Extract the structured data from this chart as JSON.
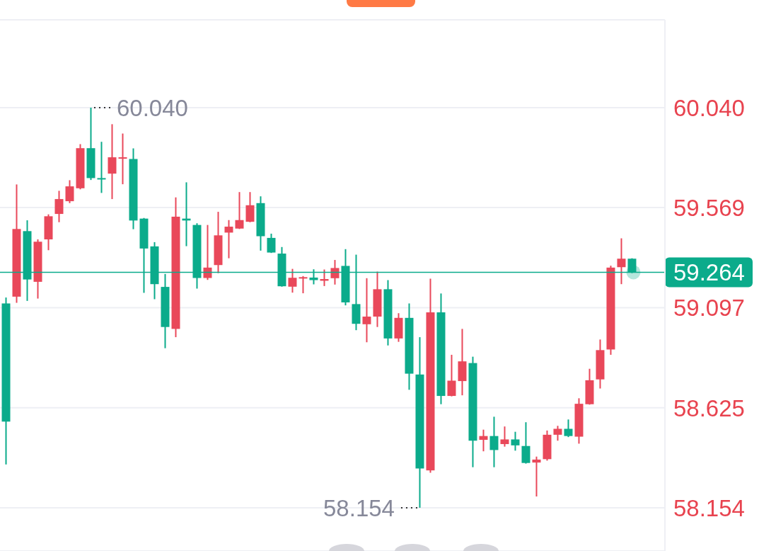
{
  "chart_data": {
    "type": "candlestick",
    "categories": [
      null,
      null,
      null,
      null,
      null,
      null,
      null,
      null,
      null,
      null,
      null,
      null,
      null,
      null,
      null,
      null,
      null,
      null,
      null,
      null,
      null,
      null,
      null,
      null,
      null,
      null,
      null,
      null,
      null,
      null,
      null,
      null,
      null,
      null,
      null,
      null,
      null,
      null,
      null,
      null,
      null,
      null,
      null,
      null,
      null,
      null,
      null,
      null,
      null,
      null,
      null,
      null,
      null,
      null,
      null,
      null,
      null,
      null,
      null,
      null
    ],
    "ohlc": [
      [
        59.117,
        59.145,
        58.358,
        58.56
      ],
      [
        59.149,
        59.678,
        59.12,
        59.468
      ],
      [
        59.458,
        59.509,
        59.129,
        59.23
      ],
      [
        59.219,
        59.419,
        59.14,
        59.408
      ],
      [
        59.419,
        59.537,
        59.368,
        59.528
      ],
      [
        59.539,
        59.648,
        59.5,
        59.609
      ],
      [
        59.599,
        59.698,
        59.59,
        59.669
      ],
      [
        59.66,
        59.868,
        59.655,
        59.849
      ],
      [
        59.849,
        60.04,
        59.699,
        59.708
      ],
      [
        59.708,
        59.879,
        59.638,
        59.702
      ],
      [
        59.729,
        59.962,
        59.609,
        59.806
      ],
      [
        59.8,
        59.918,
        59.679,
        59.806
      ],
      [
        59.798,
        59.848,
        59.467,
        59.508
      ],
      [
        59.517,
        59.52,
        59.167,
        59.376
      ],
      [
        59.386,
        59.406,
        59.137,
        59.208
      ],
      [
        59.195,
        59.256,
        58.906,
        59.006
      ],
      [
        58.997,
        59.617,
        58.958,
        59.526
      ],
      [
        59.517,
        59.688,
        59.387,
        59.508
      ],
      [
        59.487,
        59.495,
        59.187,
        59.237
      ],
      [
        59.237,
        59.487,
        59.228,
        59.286
      ],
      [
        59.298,
        59.549,
        59.26,
        59.438
      ],
      [
        59.451,
        59.51,
        59.33,
        59.479
      ],
      [
        59.47,
        59.642,
        59.468,
        59.51
      ],
      [
        59.502,
        59.642,
        59.5,
        59.58
      ],
      [
        59.59,
        59.622,
        59.366,
        59.434
      ],
      [
        59.426,
        59.446,
        59.355,
        59.357
      ],
      [
        59.352,
        59.383,
        59.196,
        59.198
      ],
      [
        59.196,
        59.28,
        59.168,
        59.238
      ],
      [
        59.235,
        59.246,
        59.165,
        59.241
      ],
      [
        59.239,
        59.278,
        59.207,
        59.227
      ],
      [
        59.224,
        59.277,
        59.199,
        59.232
      ],
      [
        59.236,
        59.322,
        59.206,
        59.284
      ],
      [
        59.294,
        59.373,
        59.108,
        59.122
      ],
      [
        59.114,
        59.347,
        58.991,
        59.021
      ],
      [
        59.019,
        59.236,
        58.934,
        59.055
      ],
      [
        59.055,
        59.267,
        59.006,
        59.184
      ],
      [
        59.184,
        59.227,
        58.919,
        58.952
      ],
      [
        58.952,
        59.071,
        58.936,
        59.049
      ],
      [
        59.049,
        59.117,
        58.71,
        58.786
      ],
      [
        58.782,
        58.958,
        58.154,
        58.339
      ],
      [
        58.33,
        59.234,
        58.319,
        59.075
      ],
      [
        59.075,
        59.164,
        58.642,
        58.681
      ],
      [
        58.681,
        58.875,
        58.679,
        58.753
      ],
      [
        58.751,
        58.997,
        58.684,
        58.844
      ],
      [
        58.836,
        58.866,
        58.345,
        58.47
      ],
      [
        58.474,
        58.522,
        58.42,
        58.492
      ],
      [
        58.492,
        58.583,
        58.345,
        58.426
      ],
      [
        58.454,
        58.537,
        58.442,
        58.476
      ],
      [
        58.476,
        58.512,
        58.423,
        58.448
      ],
      [
        58.445,
        58.557,
        58.362,
        58.365
      ],
      [
        58.367,
        58.395,
        58.207,
        58.381
      ],
      [
        58.383,
        58.518,
        58.376,
        58.498
      ],
      [
        58.498,
        58.54,
        58.47,
        58.526
      ],
      [
        58.526,
        58.57,
        58.487,
        58.492
      ],
      [
        58.489,
        58.67,
        58.456,
        58.644
      ],
      [
        58.642,
        58.809,
        58.64,
        58.755
      ],
      [
        58.759,
        58.947,
        58.716,
        58.897
      ],
      [
        58.9,
        59.295,
        58.875,
        59.286
      ],
      [
        59.288,
        59.424,
        59.208,
        59.328
      ],
      [
        59.328,
        59.33,
        59.26,
        59.264
      ]
    ],
    "colors": [
      "#0bab8b",
      "#e9485a",
      "#0bab8b",
      "#e9485a",
      "#e9485a",
      "#e9485a",
      "#e9485a",
      "#e9485a",
      "#0bab8b",
      "#0bab8b",
      "#e9485a",
      "#e9485a",
      "#0bab8b",
      "#0bab8b",
      "#0bab8b",
      "#0bab8b",
      "#e9485a",
      "#0bab8b",
      "#0bab8b",
      "#e9485a",
      "#e9485a",
      "#e9485a",
      "#e9485a",
      "#e9485a",
      "#0bab8b",
      "#0bab8b",
      "#0bab8b",
      "#e9485a",
      "#e9485a",
      "#0bab8b",
      "#e9485a",
      "#e9485a",
      "#0bab8b",
      "#0bab8b",
      "#e9485a",
      "#e9485a",
      "#0bab8b",
      "#e9485a",
      "#0bab8b",
      "#0bab8b",
      "#e9485a",
      "#0bab8b",
      "#e9485a",
      "#e9485a",
      "#0bab8b",
      "#e9485a",
      "#0bab8b",
      "#e9485a",
      "#0bab8b",
      "#0bab8b",
      "#e9485a",
      "#e9485a",
      "#e9485a",
      "#0bab8b",
      "#e9485a",
      "#e9485a",
      "#e9485a",
      "#e9485a",
      "#e9485a",
      "#0bab8b"
    ],
    "ylim": [
      57.95,
      60.454
    ],
    "yticks": [
      58.154,
      58.625,
      59.097,
      59.569,
      {
        "value": 60.04,
        "label": "60.040"
      }
    ],
    "grid": "y",
    "tick_labels": "y",
    "ref_lines": [
      {
        "axis": "y",
        "value": 59.264,
        "label": "59.264",
        "color": "#0bab8b"
      }
    ],
    "annotations": [
      "60.040",
      "58.154"
    ]
  }
}
